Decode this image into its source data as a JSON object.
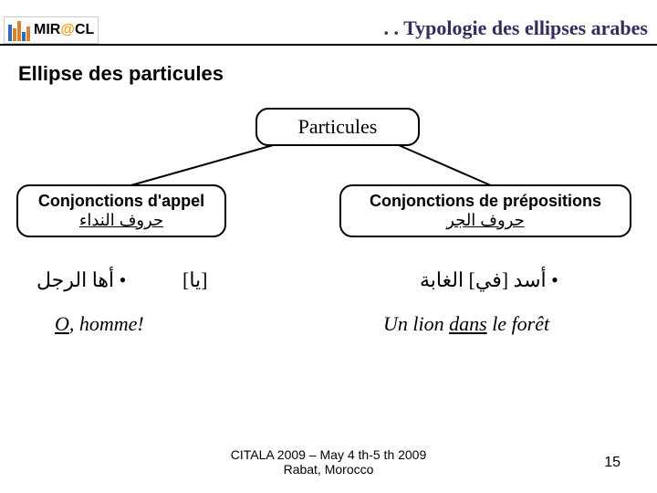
{
  "header": {
    "logo_text_pre": "MIR",
    "logo_text_at": "@",
    "logo_text_post": "CL",
    "title": ". . Typologie des ellipses arabes"
  },
  "subtitle": "Ellipse des particules",
  "diagram": {
    "root": {
      "label": "Particules"
    },
    "left": {
      "title": "Conjonctions d'appel",
      "arabic": "حروف النداء"
    },
    "right": {
      "title": "Conjonctions de prépositions",
      "arabic": "حروف الجر"
    },
    "ex_left_ar": "• أها الرجل",
    "ex_left_br": "[يا]",
    "ex_left_tr_pre": "O",
    "ex_left_tr_post": ", homme!",
    "ex_right_ar": "• أسد [في] الغابة",
    "ex_right_tr_pre": "Un lion ",
    "ex_right_tr_u": "dans",
    "ex_right_tr_post": " le forêt"
  },
  "footer": {
    "line1": "CITALA 2009 – May 4 th-5 th 2009",
    "line2": "Rabat, Morocco",
    "page": "15"
  },
  "style": {
    "logo_colors": [
      "#2a6fb5",
      "#d9822b",
      "#d9822b",
      "#2a6fb5",
      "#d9822b"
    ],
    "logo_heights": [
      18,
      14,
      22,
      10,
      16
    ],
    "header_title_color": "#3a2a5c"
  }
}
